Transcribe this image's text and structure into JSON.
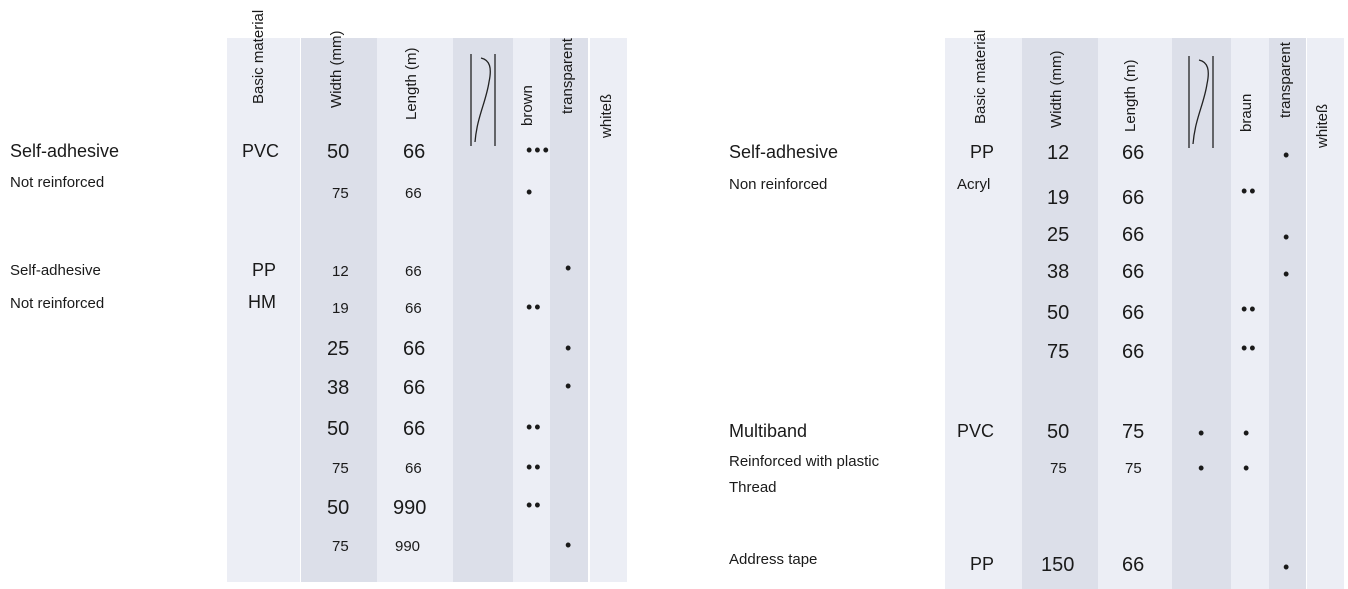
{
  "headers": {
    "basic_material": "Basic material",
    "width": "Width (mm)",
    "length": "Length (m)",
    "brown_left": "brown",
    "brown_right": "braun",
    "transparent": "transparent",
    "white": "whiteß"
  },
  "left": {
    "groups": [
      {
        "title": "Self-adhesive",
        "subtitle": "Not reinforced"
      },
      {
        "title": "Self-adhesive",
        "subtitle": "Not reinforced"
      }
    ],
    "materials": [
      "PVC",
      "PP",
      "HM"
    ],
    "rows": [
      {
        "w": "50",
        "l": "66",
        "brown": "•••",
        "transparent": ""
      },
      {
        "w": "75",
        "l": "66",
        "brown": "•",
        "transparent": ""
      },
      {
        "w": "12",
        "l": "66",
        "brown": "",
        "transparent": "•"
      },
      {
        "w": "19",
        "l": "66",
        "brown": "••",
        "transparent": ""
      },
      {
        "w": "25",
        "l": "66",
        "brown": "",
        "transparent": "•"
      },
      {
        "w": "38",
        "l": "66",
        "brown": "",
        "transparent": "•"
      },
      {
        "w": "50",
        "l": "66",
        "brown": "••",
        "transparent": ""
      },
      {
        "w": "75",
        "l": "66",
        "brown": "••",
        "transparent": ""
      },
      {
        "w": "50",
        "l": "990",
        "brown": "••",
        "transparent": ""
      },
      {
        "w": "75",
        "l": "990",
        "brown": "",
        "transparent": "•"
      }
    ]
  },
  "right": {
    "groups": [
      {
        "title": "Self-adhesive",
        "subtitle": "Non reinforced"
      },
      {
        "title": "Multiband",
        "subtitle": "Reinforced with plastic",
        "subtitle2": "Thread"
      },
      {
        "title": "Address tape"
      }
    ],
    "materials": [
      "PP",
      "Acryl",
      "PVC",
      "PP"
    ],
    "rows": [
      {
        "w": "12",
        "l": "66",
        "icon": "",
        "brown": "",
        "transparent": "•"
      },
      {
        "w": "19",
        "l": "66",
        "icon": "",
        "brown": "••",
        "transparent": ""
      },
      {
        "w": "25",
        "l": "66",
        "icon": "",
        "brown": "",
        "transparent": "•"
      },
      {
        "w": "38",
        "l": "66",
        "icon": "",
        "brown": "",
        "transparent": "•"
      },
      {
        "w": "50",
        "l": "66",
        "icon": "",
        "brown": "••",
        "transparent": ""
      },
      {
        "w": "75",
        "l": "66",
        "icon": "",
        "brown": "••",
        "transparent": ""
      },
      {
        "w": "50",
        "l": "75",
        "icon": "•",
        "brown": "•",
        "transparent": ""
      },
      {
        "w": "75",
        "l": "75",
        "icon": "•",
        "brown": "•",
        "transparent": ""
      },
      {
        "w": "150",
        "l": "66",
        "icon": "",
        "brown": "",
        "transparent": "•"
      }
    ]
  },
  "icon_name": "tape-roll-icon",
  "colors": {
    "col_light": "#eceef5",
    "col_dark": "#dcdfe9"
  }
}
